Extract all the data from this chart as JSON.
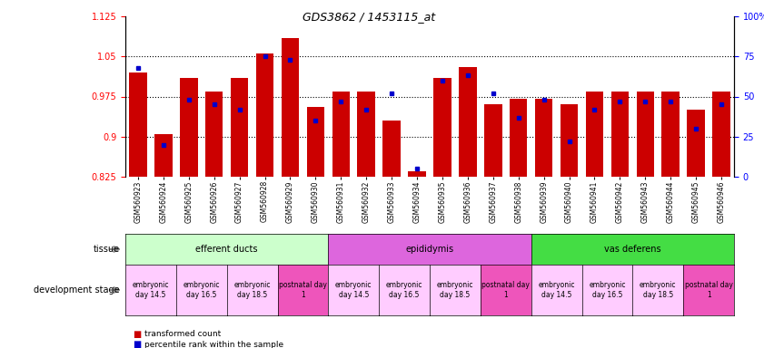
{
  "title": "GDS3862 / 1453115_at",
  "samples": [
    "GSM560923",
    "GSM560924",
    "GSM560925",
    "GSM560926",
    "GSM560927",
    "GSM560928",
    "GSM560929",
    "GSM560930",
    "GSM560931",
    "GSM560932",
    "GSM560933",
    "GSM560934",
    "GSM560935",
    "GSM560936",
    "GSM560937",
    "GSM560938",
    "GSM560939",
    "GSM560940",
    "GSM560941",
    "GSM560942",
    "GSM560943",
    "GSM560944",
    "GSM560945",
    "GSM560946"
  ],
  "red_values": [
    1.02,
    0.905,
    1.01,
    0.985,
    1.01,
    1.055,
    1.085,
    0.955,
    0.985,
    0.985,
    0.93,
    0.835,
    1.01,
    1.03,
    0.96,
    0.97,
    0.97,
    0.96,
    0.985,
    0.985,
    0.985,
    0.985,
    0.95,
    0.985
  ],
  "blue_values": [
    68,
    20,
    48,
    45,
    42,
    75,
    73,
    35,
    47,
    42,
    52,
    5,
    60,
    63,
    52,
    37,
    48,
    22,
    42,
    47,
    47,
    47,
    30,
    45
  ],
  "y_min": 0.825,
  "y_max": 1.125,
  "y_ticks_left": [
    0.825,
    0.9,
    0.975,
    1.05,
    1.125
  ],
  "y_ticks_right_vals": [
    0,
    25,
    50,
    75,
    100
  ],
  "y_ticks_right_labels": [
    "0",
    "25",
    "50",
    "75",
    "100%"
  ],
  "dotted_lines": [
    0.9,
    0.975,
    1.05
  ],
  "bar_color": "#cc0000",
  "dot_color": "#0000cc",
  "tissue_groups": [
    {
      "label": "efferent ducts",
      "start": 0,
      "end": 7,
      "color": "#ccffcc"
    },
    {
      "label": "epididymis",
      "start": 8,
      "end": 15,
      "color": "#dd66dd"
    },
    {
      "label": "vas deferens",
      "start": 16,
      "end": 23,
      "color": "#44dd44"
    }
  ],
  "dev_stage_groups": [
    {
      "label": "embryonic\nday 14.5",
      "start": 0,
      "end": 1,
      "color": "#ffccff"
    },
    {
      "label": "embryonic\nday 16.5",
      "start": 2,
      "end": 3,
      "color": "#ffccff"
    },
    {
      "label": "embryonic\nday 18.5",
      "start": 4,
      "end": 5,
      "color": "#ffccff"
    },
    {
      "label": "postnatal day\n1",
      "start": 6,
      "end": 7,
      "color": "#ee55bb"
    },
    {
      "label": "embryonic\nday 14.5",
      "start": 8,
      "end": 9,
      "color": "#ffccff"
    },
    {
      "label": "embryonic\nday 16.5",
      "start": 10,
      "end": 11,
      "color": "#ffccff"
    },
    {
      "label": "embryonic\nday 18.5",
      "start": 12,
      "end": 13,
      "color": "#ffccff"
    },
    {
      "label": "postnatal day\n1",
      "start": 14,
      "end": 15,
      "color": "#ee55bb"
    },
    {
      "label": "embryonic\nday 14.5",
      "start": 16,
      "end": 17,
      "color": "#ffccff"
    },
    {
      "label": "embryonic\nday 16.5",
      "start": 18,
      "end": 19,
      "color": "#ffccff"
    },
    {
      "label": "embryonic\nday 18.5",
      "start": 20,
      "end": 21,
      "color": "#ffccff"
    },
    {
      "label": "postnatal day\n1",
      "start": 22,
      "end": 23,
      "color": "#ee55bb"
    }
  ],
  "tissue_label": "tissue",
  "dev_stage_label": "development stage",
  "legend_red": "transformed count",
  "legend_blue": "percentile rank within the sample",
  "background_color": "#ffffff",
  "bar_width": 0.7
}
